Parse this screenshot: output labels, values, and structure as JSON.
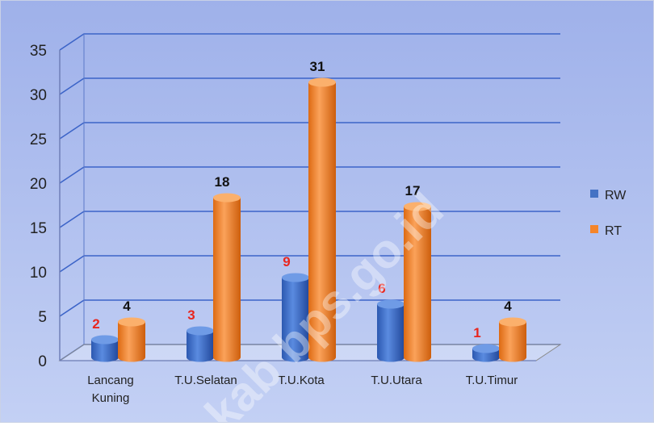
{
  "chart_data": {
    "type": "bar",
    "categories": [
      [
        "Lancang",
        "Kuning"
      ],
      [
        "T.U.Selatan"
      ],
      [
        "T.U.Kota"
      ],
      [
        "T.U.Utara"
      ],
      [
        "T.U.Timur"
      ]
    ],
    "series": [
      {
        "name": "RW",
        "values": [
          2,
          3,
          9,
          6,
          1
        ],
        "color": "#4472C4",
        "label_color": "#E8261E"
      },
      {
        "name": "RT",
        "values": [
          4,
          18,
          31,
          17,
          4
        ],
        "color": "#F5852A",
        "label_color": "#111111"
      }
    ],
    "y_ticks": [
      "0",
      "5",
      "10",
      "15",
      "20",
      "25",
      "30",
      "35"
    ],
    "ylim": [
      0,
      35
    ],
    "grid": true,
    "legend_position": "right",
    "style": "3d-cylinder",
    "background": "#a7b9ec",
    "watermark": "kab bps.go.id"
  }
}
